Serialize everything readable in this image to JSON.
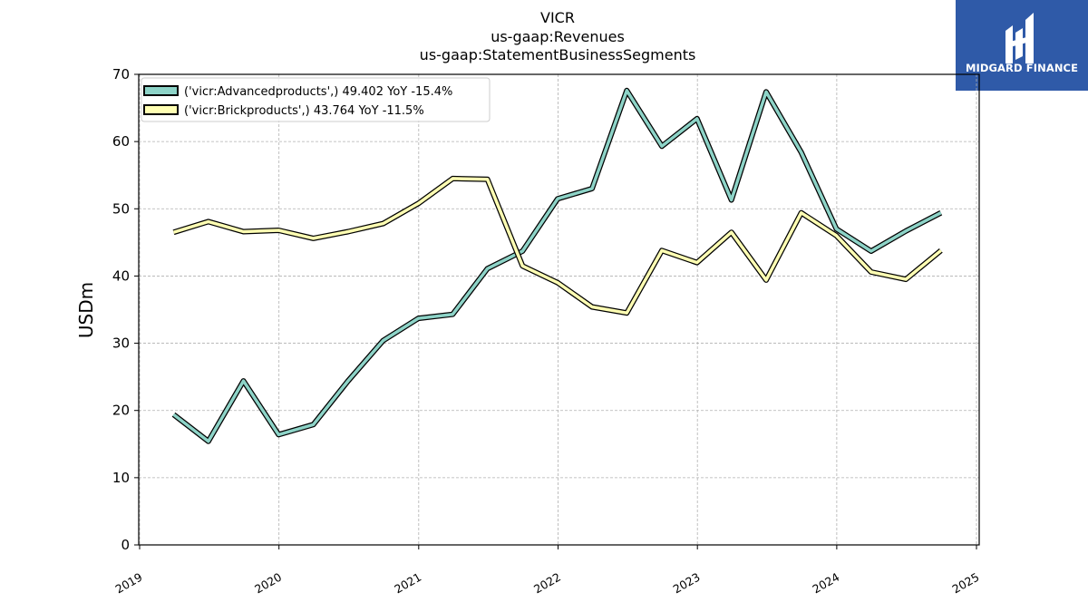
{
  "titles": [
    "VICR",
    "us-gaap:Revenues",
    "us-gaap:StatementBusinessSegments"
  ],
  "logo": {
    "text": "MIDGARD FINANCE",
    "bg_color": "#2f5aa8"
  },
  "chart_data": {
    "type": "line",
    "title": "VICR\nus-gaap:Revenues\nus-gaap:StatementBusinessSegments",
    "xlabel": "",
    "ylabel": "USDm",
    "xlim": [
      "2019-01-01",
      "2025-01-01"
    ],
    "ylim": [
      0,
      70
    ],
    "x_ticks": [
      "2019",
      "2020",
      "2021",
      "2022",
      "2023",
      "2024",
      "2025"
    ],
    "y_ticks": [
      0,
      10,
      20,
      30,
      40,
      50,
      60,
      70
    ],
    "grid": true,
    "legend_position": "top-left",
    "x": [
      "2019-03-31",
      "2019-06-30",
      "2019-09-30",
      "2019-12-31",
      "2020-03-31",
      "2020-06-30",
      "2020-09-30",
      "2020-12-31",
      "2021-03-31",
      "2021-06-30",
      "2021-09-30",
      "2021-12-31",
      "2022-03-31",
      "2022-06-30",
      "2022-09-30",
      "2022-12-31",
      "2023-03-31",
      "2023-06-30",
      "2023-09-30",
      "2023-12-31",
      "2024-03-31",
      "2024-06-30",
      "2024-09-30"
    ],
    "series": [
      {
        "name": "('vicr:Advancedproducts',) 49.402 YoY -15.4%",
        "color": "#8dd3c7",
        "values": [
          19.4,
          15.4,
          24.4,
          16.4,
          17.9,
          24.4,
          30.4,
          33.7,
          34.3,
          41.1,
          43.7,
          51.5,
          53.0,
          67.6,
          59.3,
          63.4,
          51.3,
          67.4,
          58.4,
          47.0,
          43.7,
          46.7,
          49.4
        ]
      },
      {
        "name": "('vicr:Brickproducts',) 43.764 YoY -11.5%",
        "color": "#ffffb3",
        "values": [
          46.5,
          48.1,
          46.6,
          46.8,
          45.6,
          46.6,
          47.8,
          50.8,
          54.5,
          54.4,
          41.5,
          39.0,
          35.4,
          34.5,
          43.8,
          42.0,
          46.5,
          39.4,
          49.4,
          46.0,
          40.6,
          39.5,
          43.8
        ]
      }
    ]
  }
}
